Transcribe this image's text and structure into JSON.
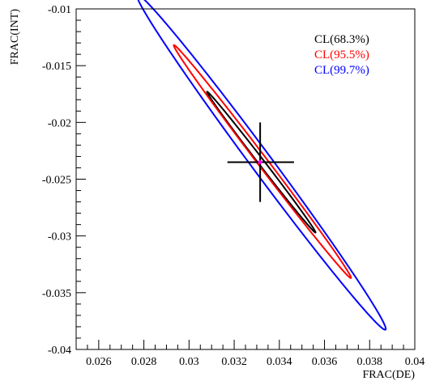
{
  "chart_data": {
    "type": "contour",
    "xlabel": "FRAC(DE)",
    "ylabel": "FRAC(INT)",
    "xlim": [
      0.025,
      0.04
    ],
    "ylim": [
      -0.04,
      -0.01
    ],
    "x_ticks": [
      {
        "value": 0.026,
        "label": "0.026"
      },
      {
        "value": 0.028,
        "label": "0.028"
      },
      {
        "value": 0.03,
        "label": "0.03"
      },
      {
        "value": 0.032,
        "label": "0.032"
      },
      {
        "value": 0.034,
        "label": "0.034"
      },
      {
        "value": 0.036,
        "label": "0.036"
      },
      {
        "value": 0.038,
        "label": "0.038"
      },
      {
        "value": 0.04,
        "label": "0.04"
      }
    ],
    "y_ticks": [
      {
        "value": -0.01,
        "label": "-0.01"
      },
      {
        "value": -0.015,
        "label": "-0.015"
      },
      {
        "value": -0.02,
        "label": "-0.02"
      },
      {
        "value": -0.025,
        "label": "-0.025"
      },
      {
        "value": -0.03,
        "label": "-0.03"
      },
      {
        "value": -0.035,
        "label": "-0.035"
      },
      {
        "value": -0.04,
        "label": "-0.04"
      }
    ],
    "center": {
      "x": 0.03315,
      "y": -0.0235,
      "color": "#ff00ff"
    },
    "error_bars": {
      "x_minus": 0.0317,
      "x_plus": 0.03465,
      "y_minus": -0.027,
      "y_plus": -0.02
    },
    "series": [
      {
        "name": "CL(68.3%)",
        "color": "#000000",
        "points": [
          [
            0.0309,
            -0.0177
          ],
          [
            0.0355,
            -0.0293
          ],
          [
            0.0325,
            -0.0213
          ],
          [
            0.0338,
            -0.0257
          ],
          [
            0.03315,
            -0.0235
          ]
        ]
      },
      {
        "name": "CL(95.5%)",
        "color": "#ff0000",
        "points": [
          [
            0.0296,
            -0.0142
          ],
          [
            0.0369,
            -0.0327
          ],
          [
            0.0318,
            -0.019
          ],
          [
            0.0345,
            -0.028
          ],
          [
            0.03315,
            -0.0235
          ]
        ]
      },
      {
        "name": "CL(99.7%)",
        "color": "#0000ff",
        "points": [
          [
            0.0281,
            -0.0105
          ],
          [
            0.0383,
            -0.0365
          ],
          [
            0.0311,
            -0.0165
          ],
          [
            0.0352,
            -0.0305
          ],
          [
            0.03315,
            -0.0235
          ]
        ]
      }
    ],
    "legend": {
      "position": "top-right"
    },
    "grid": false
  }
}
